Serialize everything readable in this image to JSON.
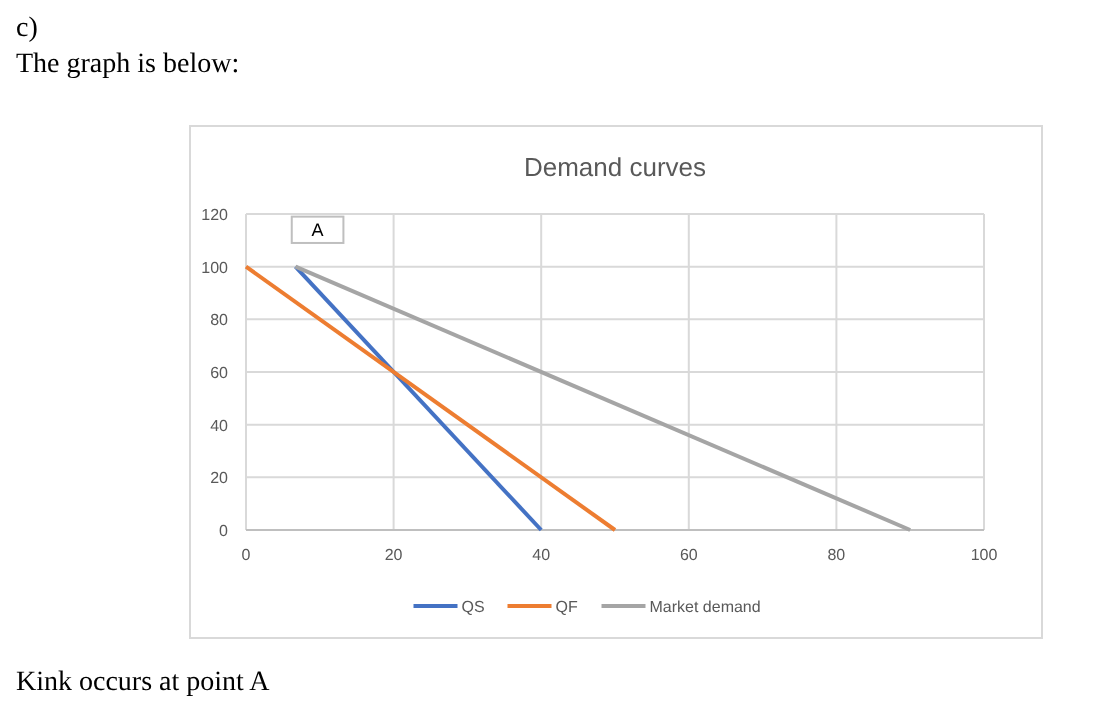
{
  "chart_data": {
    "type": "line",
    "title": "Demand curves",
    "series": [
      {
        "name": "QS",
        "color": "#4472c4",
        "x": [
          6.7,
          40
        ],
        "values": [
          100,
          0
        ]
      },
      {
        "name": "QF",
        "color": "#ed7d31",
        "x": [
          0,
          50
        ],
        "values": [
          100,
          0
        ]
      },
      {
        "name": "Market demand",
        "color": "#a5a5a5",
        "x": [
          6.7,
          90
        ],
        "values": [
          100,
          0
        ]
      }
    ],
    "xlim": [
      0,
      100
    ],
    "xticks": [
      0,
      20,
      40,
      60,
      80,
      100
    ],
    "ylim": [
      0,
      120
    ],
    "yticks": [
      0,
      20,
      40,
      60,
      80,
      100,
      120
    ],
    "grid": true,
    "legend": "bottom",
    "marker": "none",
    "line_style": "solid",
    "annotations": [
      "c)",
      "The graph is below:",
      "A",
      "Kink occurs at point A"
    ]
  }
}
